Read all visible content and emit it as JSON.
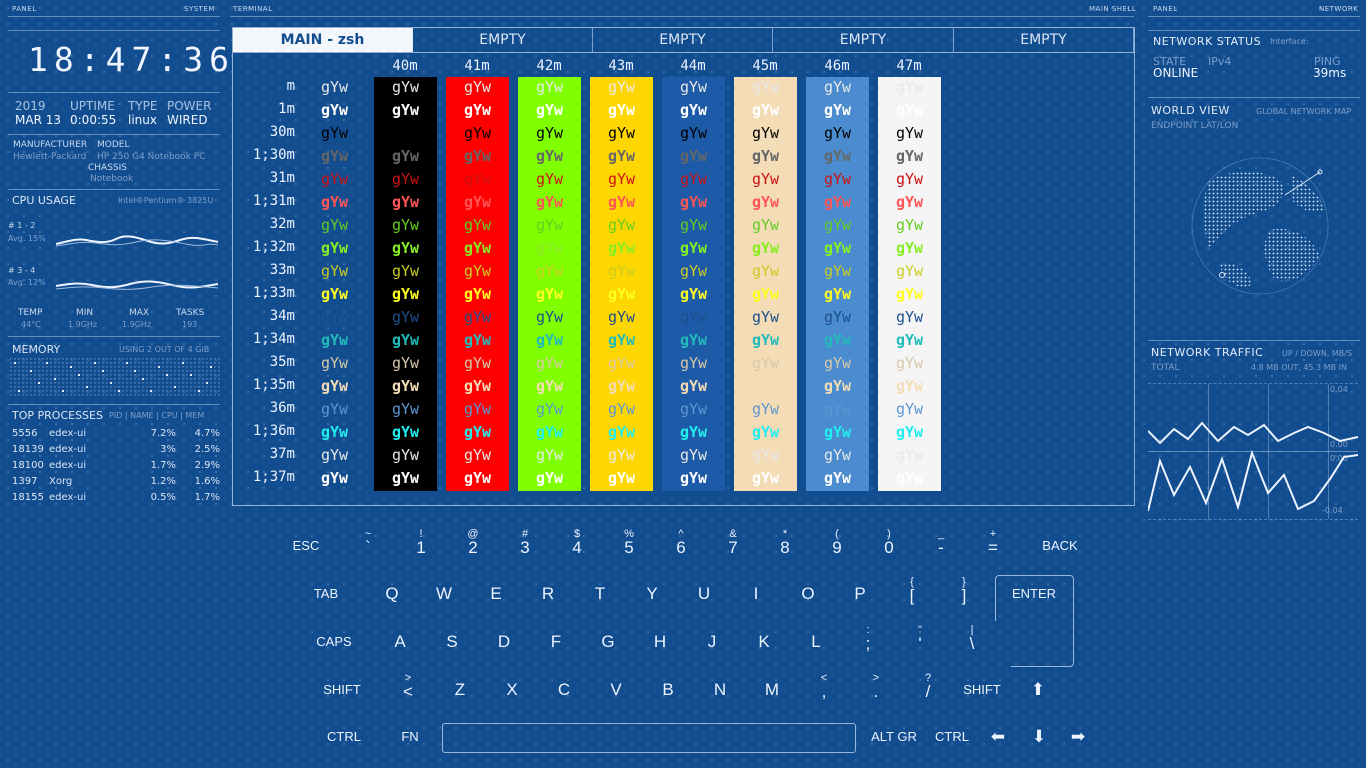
{
  "headers": {
    "panel_left": "PANEL",
    "system": "SYSTEM",
    "terminal": "TERMINAL",
    "main_shell": "MAIN SHELL",
    "panel_right": "PANEL",
    "network": "NETWORK"
  },
  "clock": "18:47:36",
  "sysinfo": {
    "year_label": "2019",
    "year_value": "MAR 13",
    "uptime_label": "UPTIME",
    "uptime_value": "0:00:55",
    "type_label": "TYPE",
    "type_value": "linux",
    "power_label": "POWER",
    "power_value": "WIRED"
  },
  "hardware": {
    "manufacturer_label": "MANUFACTURER",
    "model_label": "MODEL",
    "manufacturer_value": "Hewlett-Packard",
    "model_value": "HP 250 G4 Notebook PC",
    "chassis_label": "CHASSIS",
    "chassis_value": "Notebook"
  },
  "cpu": {
    "title": "CPU USAGE",
    "model": "Intel®Pentium® 3825U",
    "core1_label": "# 1 - 2",
    "core1_avg": "Avg. 15%",
    "core2_label": "# 3 - 4",
    "core2_avg": "Avg. 12%",
    "stats": [
      {
        "label": "TEMP",
        "value": "44°C"
      },
      {
        "label": "MIN",
        "value": "1.9GHz"
      },
      {
        "label": "MAX",
        "value": "1.9GHz"
      },
      {
        "label": "TASKS",
        "value": "193"
      }
    ]
  },
  "memory": {
    "title": "MEMORY",
    "usage": "USING 2 OUT OF 4 GiB"
  },
  "processes": {
    "title": "TOP PROCESSES",
    "columns": "PID | NAME | CPU | MEM",
    "rows": [
      {
        "pid": "5556",
        "name": "edex-ui",
        "cpu": "7.2%",
        "mem": "4.7%"
      },
      {
        "pid": "18139",
        "name": "edex-ui",
        "cpu": "3%",
        "mem": "2.5%"
      },
      {
        "pid": "18100",
        "name": "edex-ui",
        "cpu": "1.7%",
        "mem": "2.9%"
      },
      {
        "pid": "1397",
        "name": "Xorg",
        "cpu": "1.2%",
        "mem": "1.6%"
      },
      {
        "pid": "18155",
        "name": "edex-ui",
        "cpu": "0.5%",
        "mem": "1.7%"
      }
    ]
  },
  "tabs": [
    {
      "label": "MAIN - zsh",
      "active": true
    },
    {
      "label": "EMPTY"
    },
    {
      "label": "EMPTY"
    },
    {
      "label": "EMPTY"
    },
    {
      "label": "EMPTY"
    }
  ],
  "colortable": {
    "sample": "gYw",
    "columns": [
      "",
      "40m",
      "41m",
      "42m",
      "43m",
      "44m",
      "45m",
      "46m",
      "47m"
    ],
    "column_bgs": [
      "",
      "#000000",
      "#ff0000",
      "#80ff00",
      "#ffd700",
      "#1d5aa8",
      "#f3dcb6",
      "#4a8ccf",
      "#f5f5f5"
    ],
    "rows": [
      {
        "label": "m",
        "color": "#e8e8e8",
        "bold": false
      },
      {
        "label": "1m",
        "color": "#ffffff",
        "bold": true
      },
      {
        "label": "30m",
        "color": "#000000",
        "bold": false
      },
      {
        "label": "1;30m",
        "color": "#666666",
        "bold": true
      },
      {
        "label": "31m",
        "color": "#cc1111",
        "bold": false
      },
      {
        "label": "1;31m",
        "color": "#ff5555",
        "bold": true
      },
      {
        "label": "32m",
        "color": "#66cc22",
        "bold": false
      },
      {
        "label": "1;32m",
        "color": "#88ee22",
        "bold": true
      },
      {
        "label": "33m",
        "color": "#cccc22",
        "bold": false
      },
      {
        "label": "1;33m",
        "color": "#ffff22",
        "bold": true
      },
      {
        "label": "34m",
        "color": "#1e4f8c",
        "bold": false
      },
      {
        "label": "1;34m",
        "color": "#22bbbb",
        "bold": true
      },
      {
        "label": "35m",
        "color": "#d9c8a8",
        "bold": false
      },
      {
        "label": "1;35m",
        "color": "#f3dcb6",
        "bold": true
      },
      {
        "label": "36m",
        "color": "#5f95d0",
        "bold": false
      },
      {
        "label": "1;36m",
        "color": "#22eeee",
        "bold": true
      },
      {
        "label": "37m",
        "color": "#e8e8e8",
        "bold": false
      },
      {
        "label": "1;37m",
        "color": "#ffffff",
        "bold": true
      }
    ]
  },
  "network": {
    "status_title": "NETWORK STATUS",
    "interface_label": "Interface:",
    "state_label": "STATE",
    "ipv4_label": "IPv4",
    "ping_label": "PING",
    "state_value": "ONLINE",
    "ping_value": "39ms",
    "world_title": "WORLD VIEW",
    "world_subtitle": "GLOBAL NETWORK MAP",
    "endpoint_label": "ENDPOINT LAT/LON",
    "traffic_title": "NETWORK TRAFFIC",
    "traffic_units": "UP / DOWN, MB/S",
    "total_label": "TOTAL",
    "total_value": "4.8 MB OUT, 45.3 MB IN",
    "axis": [
      "0.04",
      "0.00",
      "0.00",
      "-0.04"
    ]
  },
  "keyboard": {
    "row1": [
      {
        "s": "",
        "m": "ESC",
        "w": 1
      },
      {
        "s": "~",
        "m": "`"
      },
      {
        "s": "!",
        "m": "1"
      },
      {
        "s": "@",
        "m": "2"
      },
      {
        "s": "#",
        "m": "3"
      },
      {
        "s": "$",
        "m": "4"
      },
      {
        "s": "%",
        "m": "5"
      },
      {
        "s": "^",
        "m": "6"
      },
      {
        "s": "&",
        "m": "7"
      },
      {
        "s": "*",
        "m": "8"
      },
      {
        "s": "(",
        "m": "9"
      },
      {
        "s": ")",
        "m": "0"
      },
      {
        "s": "_",
        "m": "-"
      },
      {
        "s": "+",
        "m": "="
      },
      {
        "s": "",
        "m": "BACK",
        "w": 1
      }
    ],
    "row2": [
      {
        "s": "",
        "m": "TAB",
        "w": 1
      },
      {
        "s": "",
        "m": "Q"
      },
      {
        "s": "",
        "m": "W"
      },
      {
        "s": "",
        "m": "E"
      },
      {
        "s": "",
        "m": "R"
      },
      {
        "s": "",
        "m": "T"
      },
      {
        "s": "",
        "m": "Y"
      },
      {
        "s": "",
        "m": "U"
      },
      {
        "s": "",
        "m": "I"
      },
      {
        "s": "",
        "m": "O"
      },
      {
        "s": "",
        "m": "P"
      },
      {
        "s": "{",
        "m": "["
      },
      {
        "s": "}",
        "m": "]"
      },
      {
        "s": "",
        "m": "ENTER",
        "w": 1
      }
    ],
    "row3": [
      {
        "s": "",
        "m": "CAPS",
        "w": 1
      },
      {
        "s": "",
        "m": "A"
      },
      {
        "s": "",
        "m": "S"
      },
      {
        "s": "",
        "m": "D"
      },
      {
        "s": "",
        "m": "F"
      },
      {
        "s": "",
        "m": "G"
      },
      {
        "s": "",
        "m": "H"
      },
      {
        "s": "",
        "m": "J"
      },
      {
        "s": "",
        "m": "K"
      },
      {
        "s": "",
        "m": "L"
      },
      {
        "s": ":",
        "m": ";"
      },
      {
        "s": "\"",
        "m": "'"
      },
      {
        "s": "|",
        "m": "\\"
      }
    ],
    "row4": [
      {
        "s": "",
        "m": "SHIFT",
        "w": 1
      },
      {
        "s": ">",
        "m": "<"
      },
      {
        "s": "",
        "m": "Z"
      },
      {
        "s": "",
        "m": "X"
      },
      {
        "s": "",
        "m": "C"
      },
      {
        "s": "",
        "m": "V"
      },
      {
        "s": "",
        "m": "B"
      },
      {
        "s": "",
        "m": "N"
      },
      {
        "s": "",
        "m": "M"
      },
      {
        "s": "<",
        "m": ","
      },
      {
        "s": ">",
        "m": "."
      },
      {
        "s": "?",
        "m": "/"
      },
      {
        "s": "",
        "m": "SHIFT",
        "w": 1
      },
      {
        "s": "",
        "m": "⬆"
      }
    ],
    "row5": [
      {
        "s": "",
        "m": "CTRL",
        "w": 1
      },
      {
        "s": "",
        "m": "FN",
        "w": 1
      },
      {
        "s": "",
        "m": "ALT GR",
        "w": 1
      },
      {
        "s": "",
        "m": "CTRL",
        "w": 1
      },
      {
        "s": "",
        "m": "⬅"
      },
      {
        "s": "",
        "m": "⬇"
      },
      {
        "s": "",
        "m": "➡"
      }
    ]
  },
  "colors": {
    "bg": "#114d8f",
    "fg": "#dbe6f5",
    "accent": "#f3f6fb"
  }
}
